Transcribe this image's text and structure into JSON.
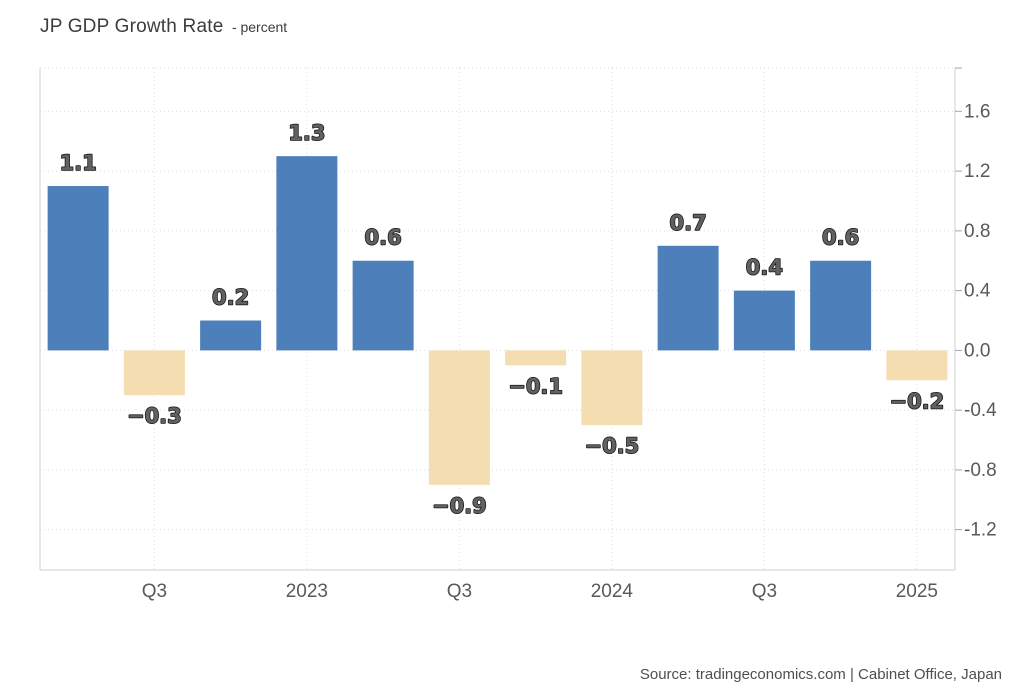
{
  "header": {
    "title": "JP GDP Growth Rate",
    "subtitle": "- percent"
  },
  "footer": {
    "source_text": "Source: tradingeconomics.com | Cabinet Office, Japan"
  },
  "chart_data": {
    "type": "bar",
    "title": "JP GDP Growth Rate",
    "ylabel": "percent",
    "xlabel": "",
    "categories": [
      "",
      "Q3",
      "",
      "2023",
      "",
      "Q3",
      "",
      "2024",
      "",
      "Q3",
      "",
      "2025"
    ],
    "values": [
      1.1,
      -0.3,
      0.2,
      1.3,
      0.6,
      -0.9,
      -0.1,
      -0.5,
      0.7,
      0.4,
      0.6,
      -0.2
    ],
    "bar_value_labels": [
      "1.1",
      "−0.3",
      "0.2",
      "1.3",
      "0.6",
      "−0.9",
      "−0.1",
      "−0.5",
      "0.7",
      "0.4",
      "0.6",
      "−0.2"
    ],
    "y_tick_labels": [
      "1.6",
      "1.2",
      "0.8",
      "0.4",
      "0.0",
      "-0.4",
      "-0.8",
      "-1.2"
    ],
    "y_tick_values": [
      1.6,
      1.2,
      0.8,
      0.4,
      0.0,
      -0.4,
      -0.8,
      -1.2
    ],
    "ylim": [
      -1.47,
      1.89
    ],
    "grid": true,
    "legend": false,
    "y_axis_side": "right",
    "colors": {
      "positive_bar": "#4d80ba",
      "negative_bar": "#f4ddb1",
      "axis_line": "#cfcfcf",
      "grid_line": "#dedede",
      "tick_mark": "#a6a6a6",
      "axis_text": "#595959",
      "value_label_fill": "#616161",
      "value_label_outline": "#141414"
    }
  }
}
